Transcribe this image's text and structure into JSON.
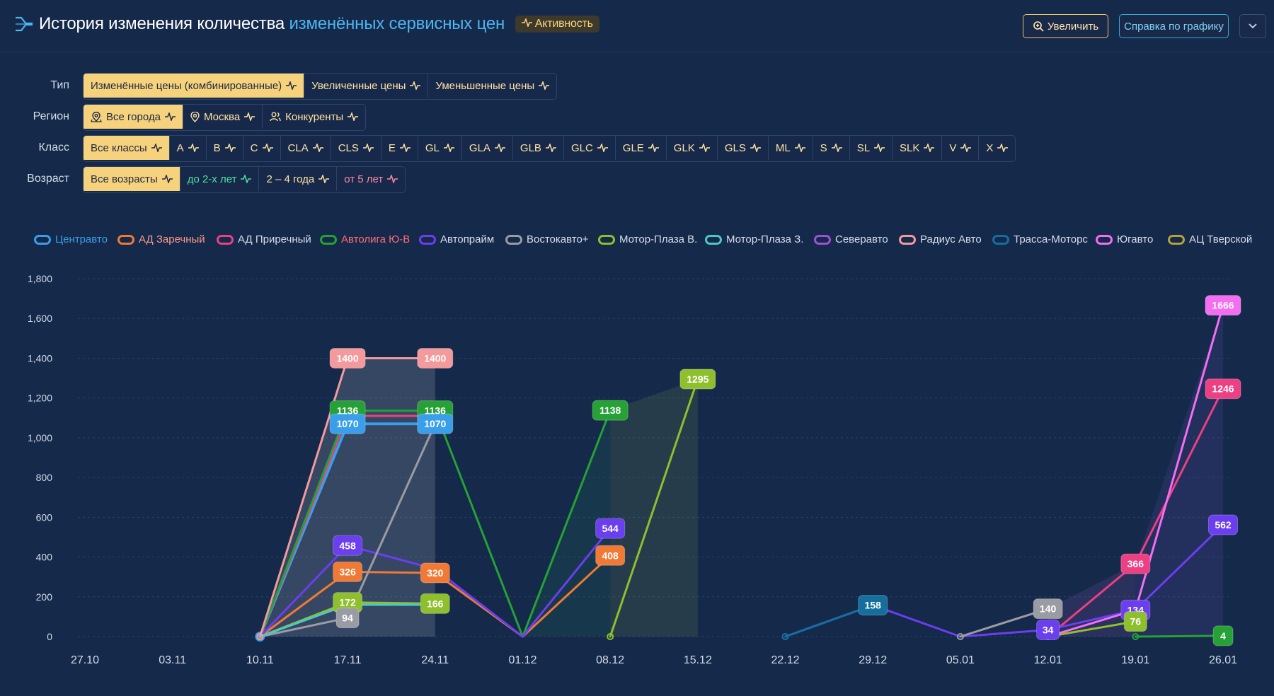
{
  "header": {
    "title_main": "История изменения количества",
    "title_accent": "изменённых сервисных цен",
    "activity_badge": "Активность",
    "zoom_button": "Увеличить",
    "help_button": "Справка по графику",
    "menu_icon": "chevron-down-icon"
  },
  "filters": {
    "type": {
      "label": "Тип",
      "items": [
        "Изменённые цены (комбинированные)",
        "Увеличенные цены",
        "Уменьшенные цены"
      ],
      "active": 0
    },
    "region": {
      "label": "Регион",
      "items": [
        "Все города",
        "Москва",
        "Конкуренты"
      ],
      "active": 0
    },
    "class": {
      "label": "Класс",
      "items": [
        "Все классы",
        "A",
        "B",
        "C",
        "CLA",
        "CLS",
        "E",
        "GL",
        "GLA",
        "GLB",
        "GLC",
        "GLE",
        "GLK",
        "GLS",
        "ML",
        "S",
        "SL",
        "SLK",
        "V",
        "X"
      ],
      "active": 0
    },
    "age": {
      "label": "Возраст",
      "items": [
        "Все возрасты",
        "до 2-х лет",
        "2 – 4 года",
        "от 5 лет"
      ],
      "active": 0
    }
  },
  "chart_data": {
    "type": "line",
    "x": [
      "27.10",
      "03.11",
      "10.11",
      "17.11",
      "24.11",
      "01.12",
      "08.12",
      "15.12",
      "22.12",
      "29.12",
      "05.01",
      "12.01",
      "19.01",
      "26.01"
    ],
    "ylim": [
      0,
      1800
    ],
    "yticks": [
      0,
      200,
      400,
      600,
      800,
      1000,
      1200,
      1400,
      1600,
      1800
    ],
    "ytick_labels": [
      "0",
      "200",
      "400",
      "600",
      "800",
      "1,000",
      "1,200",
      "1,400",
      "1,600",
      "1,800"
    ],
    "grid": true,
    "legend_position": "top",
    "series": [
      {
        "name": "Центравто",
        "color": "#3a9fea",
        "values": [
          null,
          null,
          0,
          1070,
          1070,
          null,
          null,
          null,
          null,
          null,
          null,
          null,
          null,
          null
        ]
      },
      {
        "name": "АД Заречный",
        "color": "#f07a35",
        "values": [
          null,
          null,
          0,
          326,
          320,
          0,
          408,
          null,
          null,
          null,
          null,
          null,
          null,
          null
        ]
      },
      {
        "name": "АД Приречный",
        "color": "#ec3f84",
        "values": [
          null,
          null,
          0,
          1110,
          1110,
          null,
          null,
          null,
          null,
          null,
          null,
          0,
          366,
          1246
        ]
      },
      {
        "name": "Автолига Ю-В",
        "color": "#25a136",
        "values": [
          null,
          null,
          0,
          1136,
          1136,
          0,
          1138,
          null,
          null,
          null,
          null,
          null,
          0,
          4
        ]
      },
      {
        "name": "Автопрайм",
        "color": "#6b3ef0",
        "values": [
          null,
          null,
          0,
          458,
          340,
          0,
          544,
          null,
          0,
          158,
          0,
          34,
          134,
          562
        ]
      },
      {
        "name": "Востокавто+",
        "color": "#9a9ca3",
        "values": [
          null,
          null,
          0,
          94,
          1070,
          null,
          null,
          null,
          null,
          null,
          0,
          140,
          null,
          null
        ]
      },
      {
        "name": "Мотор-Плаза В.",
        "color": "#8ebf2c",
        "values": [
          null,
          null,
          0,
          172,
          166,
          null,
          0,
          1295,
          null,
          null,
          null,
          0,
          76,
          null
        ]
      },
      {
        "name": "Мотор-Плаза З.",
        "color": "#4cc7c9",
        "values": [
          null,
          null,
          0,
          160,
          160,
          null,
          null,
          null,
          null,
          null,
          null,
          null,
          null,
          null
        ]
      },
      {
        "name": "Северавто",
        "color": "#a24fd6",
        "values": [
          null,
          null,
          null,
          null,
          null,
          null,
          null,
          null,
          null,
          null,
          null,
          null,
          null,
          null
        ]
      },
      {
        "name": "Радиус Авто",
        "color": "#f49a9c",
        "values": [
          null,
          null,
          0,
          1400,
          1400,
          null,
          null,
          null,
          null,
          null,
          null,
          null,
          null,
          null
        ]
      },
      {
        "name": "Трасса-Моторс",
        "color": "#156f9e",
        "values": [
          null,
          null,
          null,
          null,
          null,
          null,
          null,
          null,
          0,
          158,
          null,
          null,
          null,
          null
        ]
      },
      {
        "name": "Югавто",
        "color": "#f36ef0",
        "values": [
          null,
          null,
          null,
          null,
          null,
          null,
          null,
          null,
          null,
          null,
          null,
          0,
          134,
          1666
        ]
      },
      {
        "name": "АЦ Тверской",
        "color": "#b7a03c",
        "values": [
          null,
          null,
          null,
          null,
          null,
          null,
          null,
          null,
          null,
          null,
          null,
          null,
          null,
          null
        ]
      }
    ],
    "data_labels": [
      {
        "series": "Радиус Авто",
        "x": "17.11",
        "value": 1400
      },
      {
        "series": "Радиус Авто",
        "x": "24.11",
        "value": 1400
      },
      {
        "series": "Автолига Ю-В",
        "x": "17.11",
        "value": 1136
      },
      {
        "series": "Автолига Ю-В",
        "x": "24.11",
        "value": 1136
      },
      {
        "series": "Центравто",
        "x": "17.11",
        "value": 1070
      },
      {
        "series": "Центравто",
        "x": "24.11",
        "value": 1070
      },
      {
        "series": "Автопрайм",
        "x": "17.11",
        "value": 458
      },
      {
        "series": "АД Заречный",
        "x": "17.11",
        "value": 326
      },
      {
        "series": "АД Заречный",
        "x": "24.11",
        "value": 320
      },
      {
        "series": "Мотор-Плаза В.",
        "x": "17.11",
        "value": 172
      },
      {
        "series": "Мотор-Плаза В.",
        "x": "24.11",
        "value": 166
      },
      {
        "series": "Востокавто+",
        "x": "17.11",
        "value": 94
      },
      {
        "series": "Автолига Ю-В",
        "x": "08.12",
        "value": 1138
      },
      {
        "series": "Автопрайм",
        "x": "08.12",
        "value": 544
      },
      {
        "series": "АД Заречный",
        "x": "08.12",
        "value": 408
      },
      {
        "series": "Мотор-Плаза В.",
        "x": "15.12",
        "value": 1295
      },
      {
        "series": "Трасса-Моторс",
        "x": "29.12",
        "value": 158
      },
      {
        "series": "Востокавто+",
        "x": "12.01",
        "value": 140
      },
      {
        "series": "Автопрайм",
        "x": "12.01",
        "value": 34
      },
      {
        "series": "АД Приречный",
        "x": "19.01",
        "value": 366
      },
      {
        "series": "Автопрайм",
        "x": "19.01",
        "value": 134
      },
      {
        "series": "Мотор-Плаза В.",
        "x": "19.01",
        "value": 76
      },
      {
        "series": "Югавто",
        "x": "26.01",
        "value": 1666
      },
      {
        "series": "АД Приречный",
        "x": "26.01",
        "value": 1246
      },
      {
        "series": "Автопрайм",
        "x": "26.01",
        "value": 562
      },
      {
        "series": "Автолига Ю-В",
        "x": "26.01",
        "value": 4
      }
    ]
  }
}
